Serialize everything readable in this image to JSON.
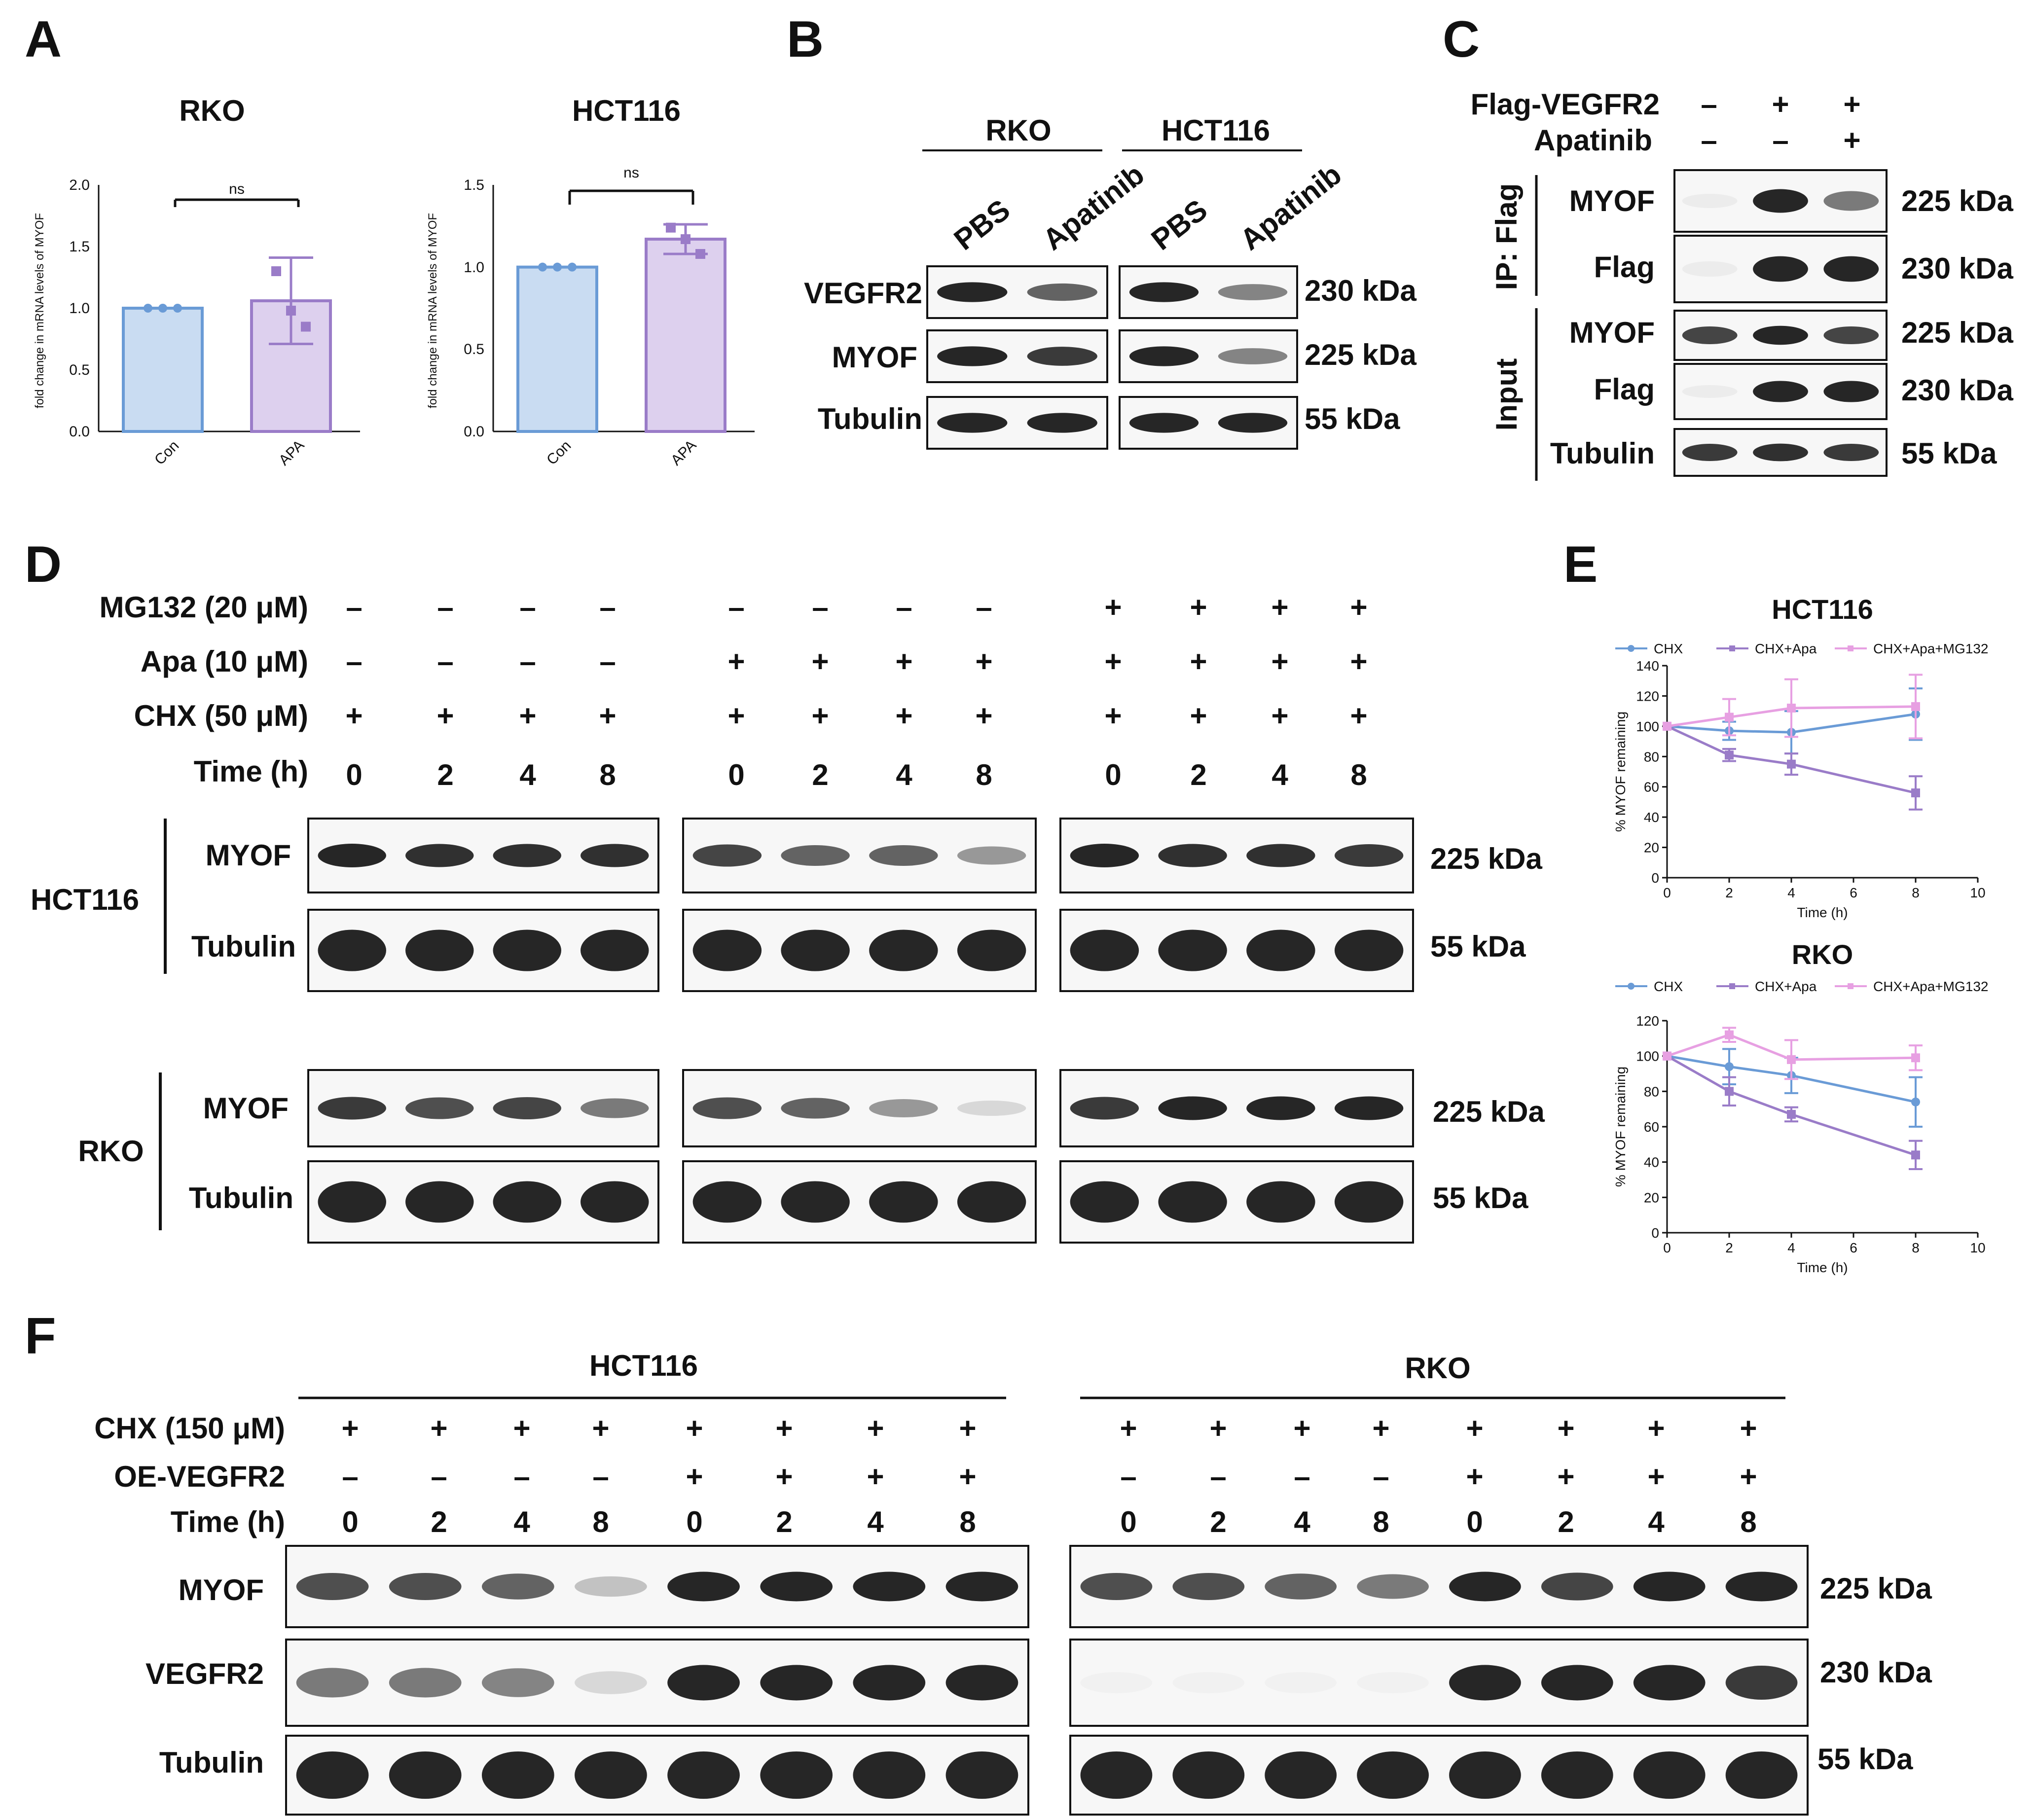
{
  "colors": {
    "blue": "#6a9bd6",
    "blue_fill": "#c9dcf2",
    "purple": "#9a7cc8",
    "purple_fill": "#ddd0ee",
    "pink": "#e7a0e2",
    "blot": "#1a1a1a"
  },
  "A": {
    "label": "A",
    "charts": [
      {
        "title": "RKO",
        "ylabel": "fold change in mRNA levels of MYOF",
        "yticks": [
          "0.0",
          "0.5",
          "1.0",
          "1.5",
          "2.0"
        ],
        "categories": [
          "Con",
          "APA"
        ],
        "sig": "ns"
      },
      {
        "title": "HCT116",
        "ylabel": "fold change in mRNA levels of MYOF",
        "yticks": [
          "0.0",
          "0.5",
          "1.0",
          "1.5"
        ],
        "categories": [
          "Con",
          "APA"
        ],
        "sig": "ns"
      }
    ]
  },
  "B": {
    "label": "B",
    "groups": [
      "RKO",
      "HCT116"
    ],
    "lanes": [
      "PBS",
      "Apatinib",
      "PBS",
      "Apatinib"
    ],
    "rows": [
      "VEGFR2",
      "MYOF",
      "Tubulin"
    ],
    "kda": [
      "230 kDa",
      "225 kDa",
      "55 kDa"
    ]
  },
  "C": {
    "label": "C",
    "conditions": [
      {
        "name": "Flag-VEGFR2",
        "signs": [
          "–",
          "+",
          "+"
        ]
      },
      {
        "name": "Apatinib",
        "signs": [
          "–",
          "–",
          "+"
        ]
      }
    ],
    "ip_label": "IP: Flag",
    "input_label": "Input",
    "rows": [
      "MYOF",
      "Flag",
      "MYOF",
      "Flag",
      "Tubulin"
    ],
    "kda": [
      "225 kDa",
      "230 kDa",
      "225 kDa",
      "230 kDa",
      "55 kDa"
    ]
  },
  "D": {
    "label": "D",
    "conditions": [
      {
        "name": "MG132 (20 μM)",
        "signs": [
          "–",
          "–",
          "–",
          "–",
          "–",
          "–",
          "–",
          "–",
          "+",
          "+",
          "+",
          "+"
        ]
      },
      {
        "name": "Apa (10 μM)",
        "signs": [
          "–",
          "–",
          "–",
          "–",
          "+",
          "+",
          "+",
          "+",
          "+",
          "+",
          "+",
          "+"
        ]
      },
      {
        "name": "CHX (50 μM)",
        "signs": [
          "+",
          "+",
          "+",
          "+",
          "+",
          "+",
          "+",
          "+",
          "+",
          "+",
          "+",
          "+"
        ]
      },
      {
        "name": "Time (h)",
        "signs": [
          "0",
          "2",
          "4",
          "8",
          "0",
          "2",
          "4",
          "8",
          "0",
          "2",
          "4",
          "8"
        ]
      }
    ],
    "cells": [
      "HCT116",
      "RKO"
    ],
    "rows": [
      "MYOF",
      "Tubulin"
    ],
    "kda": [
      "225 kDa",
      "55 kDa"
    ]
  },
  "E": {
    "label": "E"
  },
  "F": {
    "label": "F",
    "groups": [
      "HCT116",
      "RKO"
    ],
    "conditions": [
      {
        "name": "CHX (150 μM)",
        "signs": [
          "+",
          "+",
          "+",
          "+",
          "+",
          "+",
          "+",
          "+"
        ]
      },
      {
        "name": "OE-VEGFR2",
        "signs": [
          "–",
          "–",
          "–",
          "–",
          "+",
          "+",
          "+",
          "+"
        ]
      },
      {
        "name": "Time (h)",
        "signs": [
          "0",
          "2",
          "4",
          "8",
          "0",
          "2",
          "4",
          "8"
        ]
      }
    ],
    "rows": [
      "MYOF",
      "VEGFR2",
      "Tubulin"
    ],
    "kda": [
      "225 kDa",
      "230 kDa",
      "55 kDa"
    ]
  },
  "chart_data": [
    {
      "type": "bar",
      "panel": "A",
      "title": "RKO",
      "categories": [
        "Con",
        "APA"
      ],
      "values": [
        1.0,
        1.06
      ],
      "errors": [
        0,
        0.35
      ],
      "points": [
        [
          1.0,
          1.0,
          1.0
        ],
        [
          1.3,
          0.98,
          0.85
        ]
      ],
      "ylabel": "fold change in mRNA levels of MYOF",
      "ylim": [
        0,
        2.0
      ],
      "annotation": "ns"
    },
    {
      "type": "bar",
      "panel": "A",
      "title": "HCT116",
      "categories": [
        "Con",
        "APA"
      ],
      "values": [
        1.0,
        1.17
      ],
      "errors": [
        0,
        0.09
      ],
      "points": [
        [
          1.0,
          1.0,
          1.0
        ],
        [
          1.24,
          1.17,
          1.08
        ]
      ],
      "ylabel": "fold change in mRNA levels of MYOF",
      "ylim": [
        0,
        1.5
      ],
      "annotation": "ns"
    },
    {
      "type": "line",
      "panel": "E",
      "title": "HCT116",
      "x": [
        0,
        2,
        4,
        8
      ],
      "xlabel": "Time (h)",
      "ylabel": "% MYOF remaining",
      "xlim": [
        0,
        10
      ],
      "ylim": [
        0,
        140
      ],
      "xticks": [
        0,
        2,
        4,
        6,
        8,
        10
      ],
      "yticks": [
        0,
        20,
        40,
        60,
        80,
        100,
        120,
        140
      ],
      "legend": "top",
      "series": [
        {
          "name": "CHX",
          "values": [
            100,
            97,
            96,
            108
          ],
          "errors": [
            0,
            6,
            14,
            17
          ]
        },
        {
          "name": "CHX+Apa",
          "values": [
            100,
            81,
            75,
            56
          ],
          "errors": [
            0,
            4,
            7,
            11
          ]
        },
        {
          "name": "CHX+Apa+MG132",
          "values": [
            100,
            106,
            112,
            113
          ],
          "errors": [
            0,
            12,
            19,
            21
          ]
        }
      ]
    },
    {
      "type": "line",
      "panel": "E",
      "title": "RKO",
      "x": [
        0,
        2,
        4,
        8
      ],
      "xlabel": "Time (h)",
      "ylabel": "% MYOF remaining",
      "xlim": [
        0,
        10
      ],
      "ylim": [
        0,
        120
      ],
      "xticks": [
        0,
        2,
        4,
        6,
        8,
        10
      ],
      "yticks": [
        0,
        20,
        40,
        60,
        80,
        100,
        120
      ],
      "legend": "top",
      "series": [
        {
          "name": "CHX",
          "values": [
            100,
            94,
            89,
            74
          ],
          "errors": [
            0,
            10,
            10,
            14
          ]
        },
        {
          "name": "CHX+Apa",
          "values": [
            100,
            80,
            67,
            44
          ],
          "errors": [
            0,
            8,
            4,
            8
          ]
        },
        {
          "name": "CHX+Apa+MG132",
          "values": [
            100,
            112,
            98,
            99
          ],
          "errors": [
            0,
            4,
            11,
            7
          ]
        }
      ]
    }
  ]
}
